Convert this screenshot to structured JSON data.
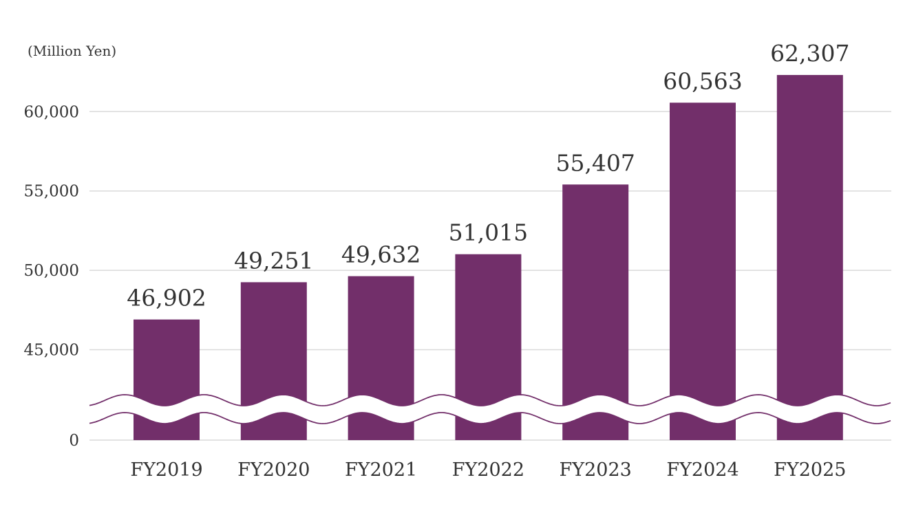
{
  "chart_data": {
    "type": "bar",
    "unit_label": "(Million Yen)",
    "categories": [
      "FY2019",
      "FY2020",
      "FY2021",
      "FY2022",
      "FY2023",
      "FY2024",
      "FY2025"
    ],
    "values": [
      46902,
      49251,
      49632,
      51015,
      55407,
      60563,
      62307
    ],
    "value_labels": [
      "46,902",
      "49,251",
      "49,632",
      "51,015",
      "55,407",
      "60,563",
      "62,307"
    ],
    "y_ticks": [
      0,
      45000,
      50000,
      55000,
      60000
    ],
    "y_tick_labels": [
      "0",
      "45,000",
      "50,000",
      "55,000",
      "60,000"
    ],
    "ylim": [
      0,
      62307
    ],
    "axis_break": true,
    "grid": true,
    "bar_color": "#722f6a",
    "grid_color": "#d9d9d9",
    "text_color": "#333333"
  }
}
